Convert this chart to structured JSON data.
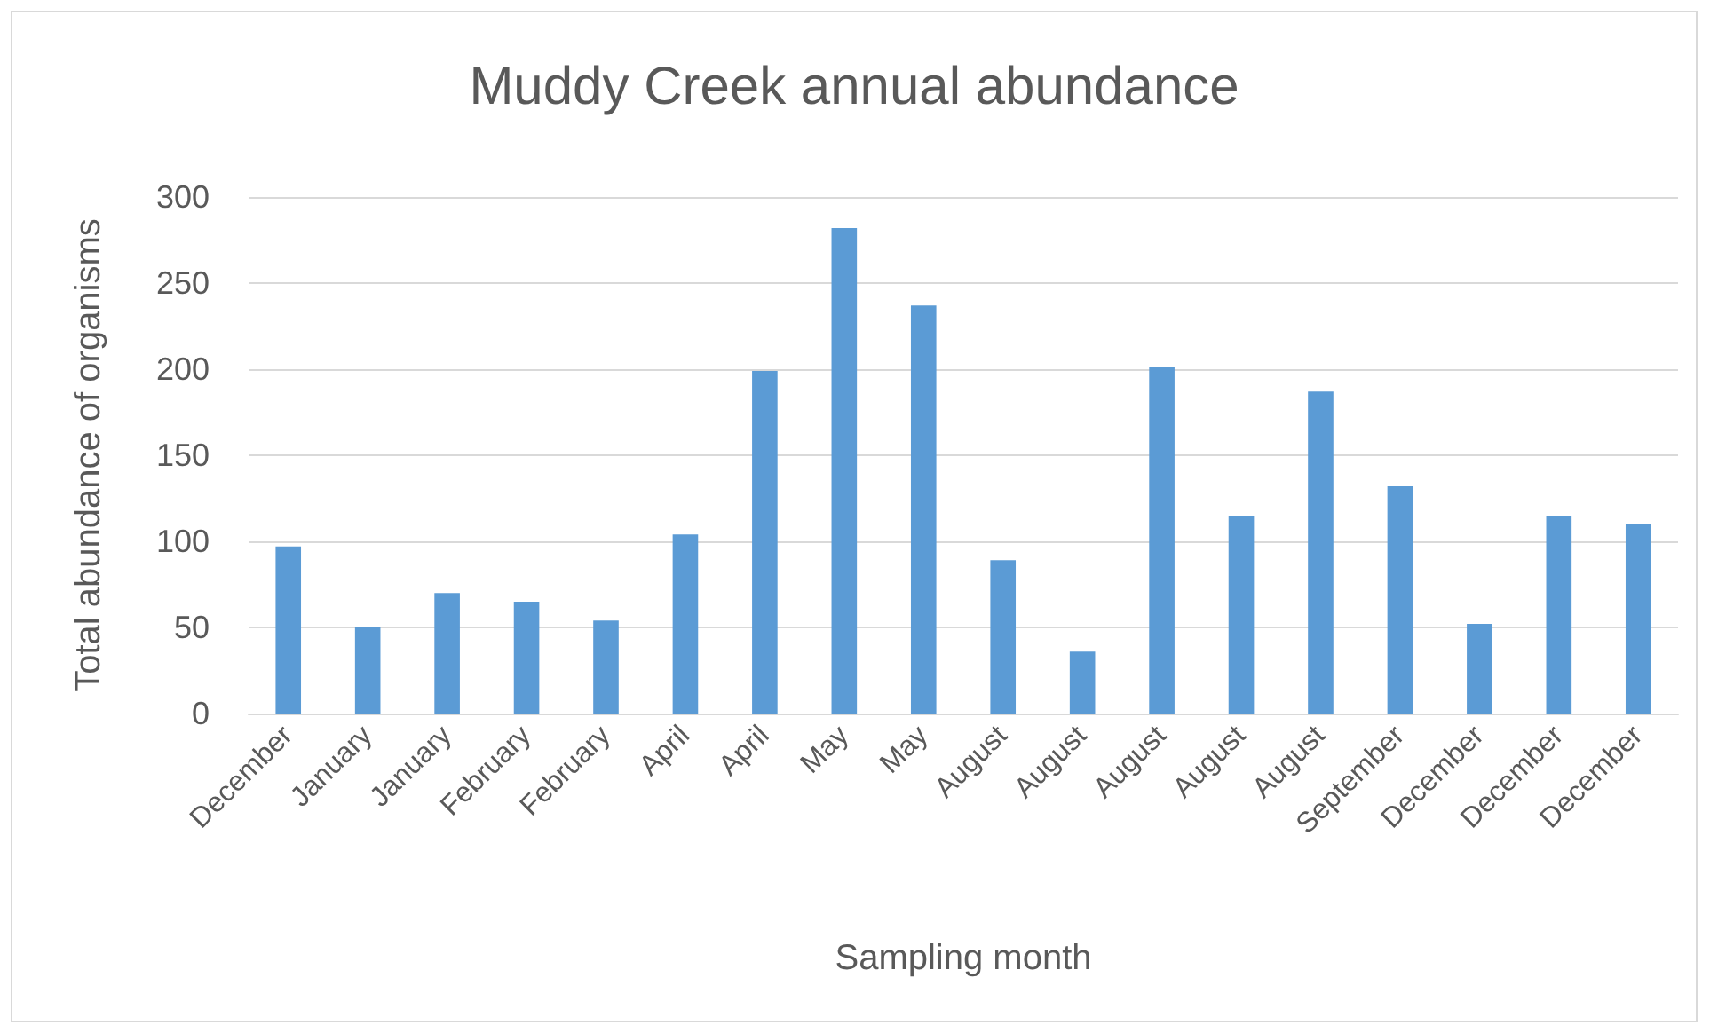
{
  "chart_data": {
    "type": "bar",
    "title": "Muddy Creek annual abundance",
    "xlabel": "Sampling month",
    "ylabel": "Total abundance of organisms",
    "categories": [
      "December",
      "January",
      "January",
      "February",
      "February",
      "April",
      "April",
      "May",
      "May",
      "August",
      "August",
      "August",
      "August",
      "August",
      "September",
      "December",
      "December",
      "December"
    ],
    "values": [
      97,
      50,
      70,
      65,
      54,
      104,
      199,
      282,
      237,
      89,
      36,
      201,
      115,
      187,
      132,
      52,
      115,
      110
    ],
    "color": "#5b9bd5",
    "ylim": [
      0,
      300
    ],
    "yticks": [
      0,
      50,
      100,
      150,
      200,
      250,
      300
    ],
    "grid": "y"
  }
}
